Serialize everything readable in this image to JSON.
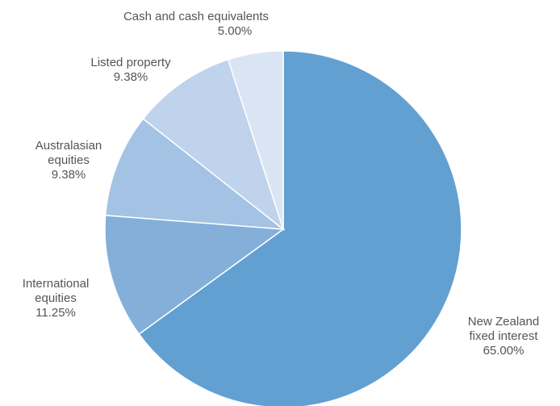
{
  "chart_data": {
    "type": "pie",
    "start": "12 o'clock",
    "direction": "clockwise",
    "slices": [
      {
        "name": "New Zealand fixed interest",
        "label_lines": [
          "New Zealand",
          "fixed interest"
        ],
        "value": 65.0,
        "value_label": "65.00%",
        "color": "#63a0d2"
      },
      {
        "name": "International equities",
        "label_lines": [
          "International",
          "equities"
        ],
        "value": 11.25,
        "value_label": "11.25%",
        "color": "#84afd9"
      },
      {
        "name": "Australasian equities",
        "label_lines": [
          "Australasian",
          "equities"
        ],
        "value": 9.38,
        "value_label": "9.38%",
        "color": "#a3c2e4"
      },
      {
        "name": "Listed property",
        "label_lines": [
          "Listed property"
        ],
        "value": 9.38,
        "value_label": "9.38%",
        "color": "#bfd3ed"
      },
      {
        "name": "Cash and cash equivalents",
        "label_lines": [
          "Cash and cash equivalents"
        ],
        "value": 5.0,
        "value_label": "5.00%",
        "color": "#dae5f4"
      }
    ]
  }
}
